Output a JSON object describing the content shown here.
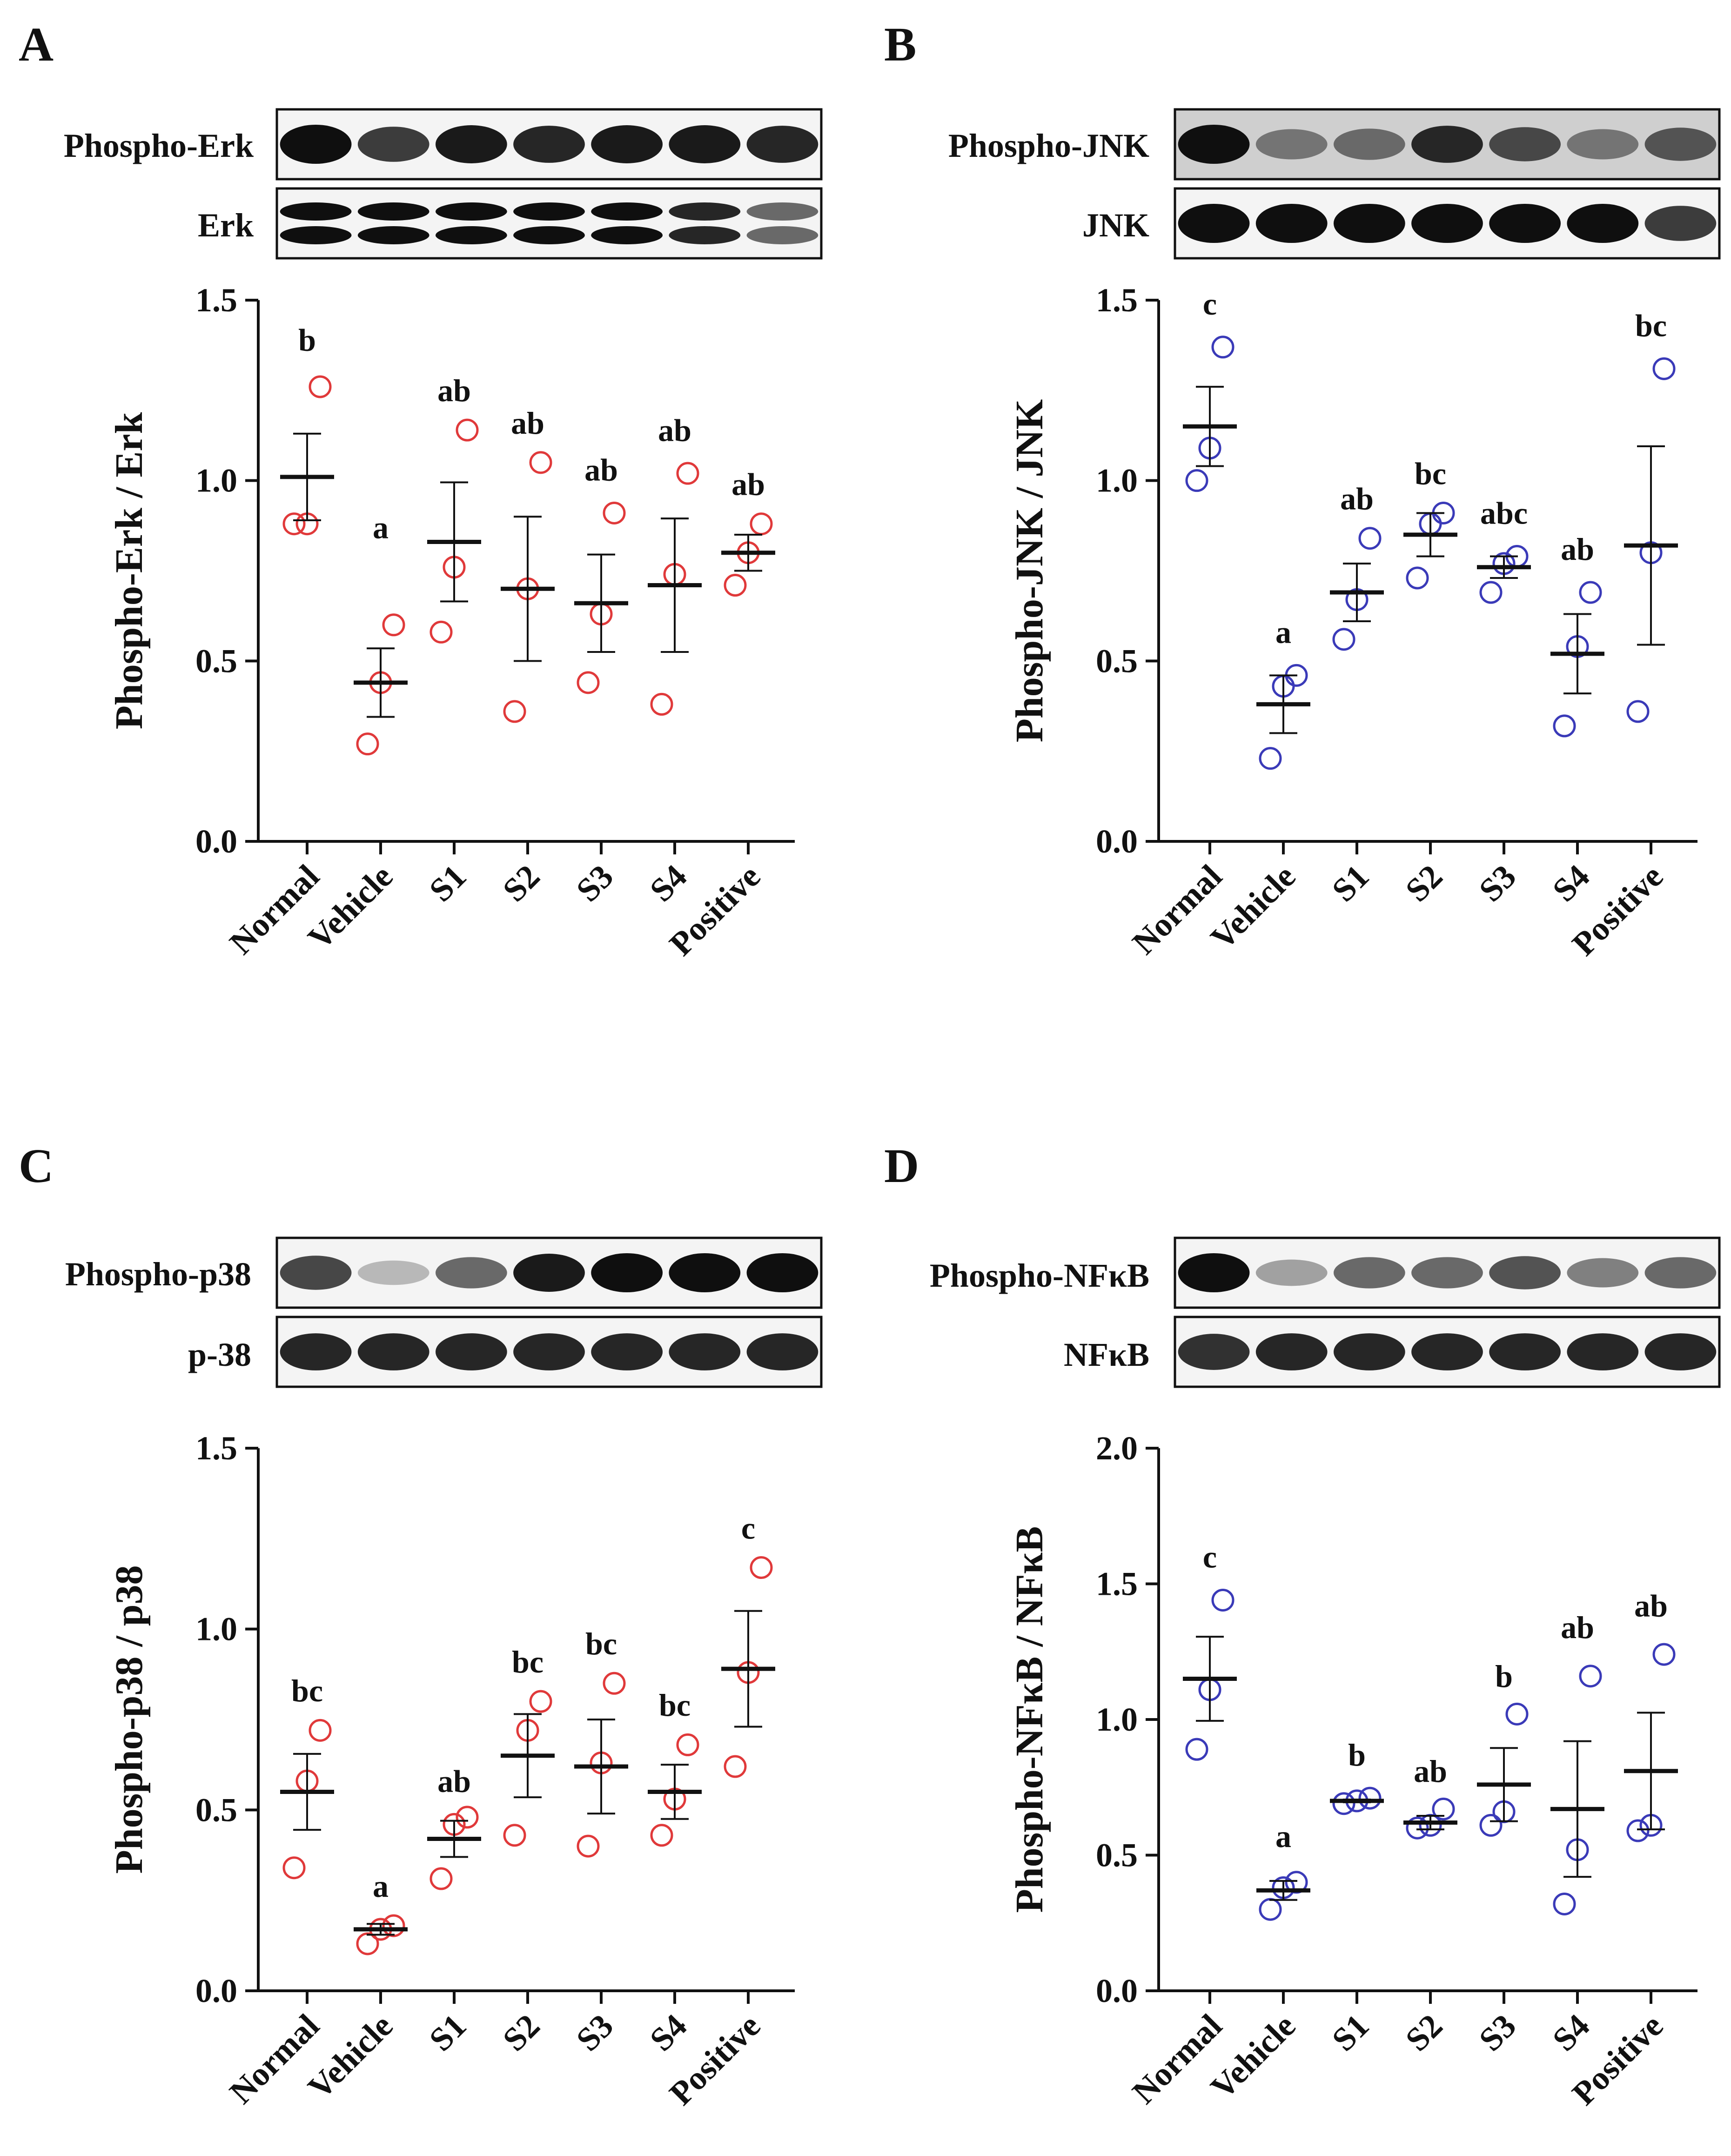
{
  "figure": {
    "panels": [
      "A",
      "B",
      "C",
      "D"
    ]
  },
  "blots": [
    {
      "panel": "A",
      "phospho_label": "Phospho-Erk",
      "total_label": "Erk"
    },
    {
      "panel": "B",
      "phospho_label": "Phospho-JNK",
      "total_label": "JNK"
    },
    {
      "panel": "C",
      "phospho_label": "Phospho-p38",
      "total_label": "p-38"
    },
    {
      "panel": "D",
      "phospho_label": "Phospho-NFκB",
      "total_label": "NFκB"
    }
  ],
  "colors": {
    "red": "#e0393a",
    "blue": "#3a3ab8",
    "axis": "#111111"
  },
  "chart_data": [
    {
      "panel": "A",
      "type": "scatter",
      "ylabel": "Phospho-Erk / Erk",
      "ylim": [
        0,
        1.5
      ],
      "yticks": [
        "0.0",
        "0.5",
        "1.0",
        "1.5"
      ],
      "color": "red",
      "categories": [
        "Normal",
        "Vehicle",
        "S1",
        "S2",
        "S3",
        "S4",
        "Positive"
      ],
      "points": [
        [
          0.88,
          0.88,
          1.26
        ],
        [
          0.27,
          0.44,
          0.6
        ],
        [
          0.58,
          0.76,
          1.14
        ],
        [
          0.36,
          0.7,
          1.05
        ],
        [
          0.44,
          0.63,
          0.91
        ],
        [
          0.38,
          0.74,
          1.02
        ],
        [
          0.71,
          0.8,
          0.88
        ]
      ],
      "means": [
        1.01,
        0.44,
        0.83,
        0.7,
        0.66,
        0.71,
        0.8
      ],
      "sem": [
        0.12,
        0.095,
        0.165,
        0.2,
        0.135,
        0.185,
        0.05
      ],
      "sig": [
        "b",
        "a",
        "ab",
        "ab",
        "ab",
        "ab",
        "ab"
      ],
      "sig_y": [
        1.36,
        0.84,
        1.22,
        1.13,
        1.0,
        1.11,
        0.96
      ]
    },
    {
      "panel": "B",
      "type": "scatter",
      "ylabel": "Phospho-JNK / JNK",
      "ylim": [
        0,
        1.5
      ],
      "yticks": [
        "0.0",
        "0.5",
        "1.0",
        "1.5"
      ],
      "color": "blue",
      "categories": [
        "Normal",
        "Vehicle",
        "S1",
        "S2",
        "S3",
        "S4",
        "Positive"
      ],
      "points": [
        [
          1.0,
          1.09,
          1.37
        ],
        [
          0.23,
          0.43,
          0.46
        ],
        [
          0.56,
          0.67,
          0.84
        ],
        [
          0.73,
          0.88,
          0.91
        ],
        [
          0.69,
          0.77,
          0.79
        ],
        [
          0.32,
          0.54,
          0.69
        ],
        [
          0.36,
          0.8,
          1.31
        ]
      ],
      "means": [
        1.15,
        0.38,
        0.69,
        0.85,
        0.76,
        0.52,
        0.82
      ],
      "sem": [
        0.11,
        0.08,
        0.08,
        0.06,
        0.03,
        0.11,
        0.275
      ],
      "sig": [
        "c",
        "a",
        "ab",
        "bc",
        "abc",
        "ab",
        "bc"
      ],
      "sig_y": [
        1.46,
        0.55,
        0.92,
        0.99,
        0.88,
        0.78,
        1.4
      ]
    },
    {
      "panel": "C",
      "type": "scatter",
      "ylabel": "Phospho-p38 / p38",
      "ylim": [
        0,
        1.5
      ],
      "yticks": [
        "0.0",
        "0.5",
        "1.0",
        "1.5"
      ],
      "color": "red",
      "categories": [
        "Normal",
        "Vehicle",
        "S1",
        "S2",
        "S3",
        "S4",
        "Positive"
      ],
      "points": [
        [
          0.34,
          0.58,
          0.72
        ],
        [
          0.13,
          0.17,
          0.18
        ],
        [
          0.31,
          0.46,
          0.48
        ],
        [
          0.43,
          0.72,
          0.8
        ],
        [
          0.4,
          0.63,
          0.85
        ],
        [
          0.43,
          0.53,
          0.68
        ],
        [
          0.62,
          0.88,
          1.17
        ]
      ],
      "means": [
        0.55,
        0.17,
        0.42,
        0.65,
        0.62,
        0.55,
        0.89
      ],
      "sem": [
        0.105,
        0.015,
        0.05,
        0.115,
        0.13,
        0.075,
        0.16
      ],
      "sig": [
        "bc",
        "a",
        "ab",
        "bc",
        "bc",
        "bc",
        "c"
      ],
      "sig_y": [
        0.8,
        0.26,
        0.55,
        0.88,
        0.93,
        0.76,
        1.25
      ]
    },
    {
      "panel": "D",
      "type": "scatter",
      "ylabel": "Phospho-NFκB / NFκB",
      "ylim": [
        0,
        2.0
      ],
      "yticks": [
        "0.0",
        "0.5",
        "1.0",
        "1.5",
        "2.0"
      ],
      "color": "blue",
      "categories": [
        "Normal",
        "Vehicle",
        "S1",
        "S2",
        "S3",
        "S4",
        "Positive"
      ],
      "points": [
        [
          0.89,
          1.11,
          1.44
        ],
        [
          0.3,
          0.38,
          0.4
        ],
        [
          0.69,
          0.7,
          0.71
        ],
        [
          0.6,
          0.61,
          0.67
        ],
        [
          0.61,
          0.66,
          1.02
        ],
        [
          0.32,
          0.52,
          1.16
        ],
        [
          0.59,
          0.61,
          1.24
        ]
      ],
      "means": [
        1.15,
        0.37,
        0.7,
        0.62,
        0.76,
        0.67,
        0.81
      ],
      "sem": [
        0.155,
        0.035,
        0.005,
        0.025,
        0.135,
        0.25,
        0.215
      ],
      "sig": [
        "c",
        "a",
        "b",
        "ab",
        "b",
        "ab",
        "ab"
      ],
      "sig_y": [
        1.56,
        0.53,
        0.83,
        0.77,
        1.12,
        1.3,
        1.38
      ]
    }
  ]
}
